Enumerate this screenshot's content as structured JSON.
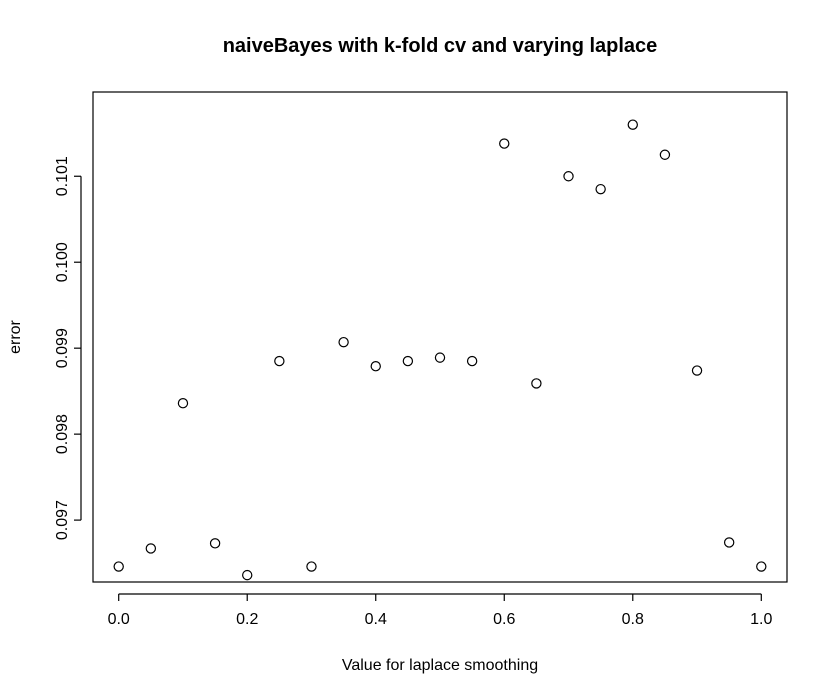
{
  "chart_data": {
    "type": "scatter",
    "title": "naiveBayes with k-fold cv and varying laplace",
    "xlabel": "Value for laplace smoothing",
    "ylabel": "error",
    "xlim": [
      -0.04,
      1.04
    ],
    "ylim": [
      0.09628,
      0.10198
    ],
    "xticks": [
      0.0,
      0.2,
      0.4,
      0.6,
      0.8,
      1.0
    ],
    "xtick_labels": [
      "0.0",
      "0.2",
      "0.4",
      "0.6",
      "0.8",
      "1.0"
    ],
    "yticks": [
      0.097,
      0.098,
      0.099,
      0.1,
      0.101
    ],
    "ytick_labels": [
      "0.097",
      "0.098",
      "0.099",
      "0.100",
      "0.101"
    ],
    "grid": false,
    "marker": "open-circle",
    "points": [
      {
        "x": 0.0,
        "y": 0.09646
      },
      {
        "x": 0.05,
        "y": 0.09667
      },
      {
        "x": 0.1,
        "y": 0.09836
      },
      {
        "x": 0.15,
        "y": 0.09673
      },
      {
        "x": 0.2,
        "y": 0.09636
      },
      {
        "x": 0.25,
        "y": 0.09885
      },
      {
        "x": 0.3,
        "y": 0.09646
      },
      {
        "x": 0.35,
        "y": 0.09907
      },
      {
        "x": 0.4,
        "y": 0.09879
      },
      {
        "x": 0.45,
        "y": 0.09885
      },
      {
        "x": 0.5,
        "y": 0.09889
      },
      {
        "x": 0.55,
        "y": 0.09885
      },
      {
        "x": 0.6,
        "y": 0.10138
      },
      {
        "x": 0.65,
        "y": 0.09859
      },
      {
        "x": 0.7,
        "y": 0.101
      },
      {
        "x": 0.75,
        "y": 0.10085
      },
      {
        "x": 0.8,
        "y": 0.1016
      },
      {
        "x": 0.85,
        "y": 0.10125
      },
      {
        "x": 0.9,
        "y": 0.09874
      },
      {
        "x": 0.95,
        "y": 0.09674
      },
      {
        "x": 1.0,
        "y": 0.09646
      }
    ]
  }
}
